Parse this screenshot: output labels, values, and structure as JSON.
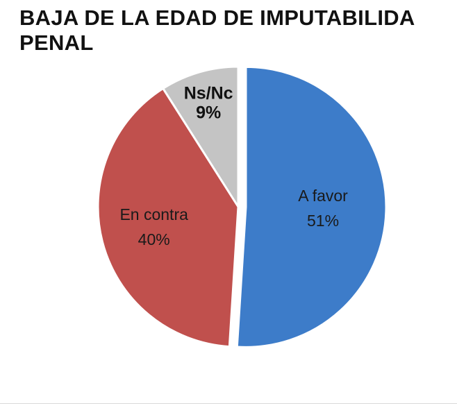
{
  "chart_data": {
    "type": "pie",
    "title_lines": [
      "BAJA DE LA EDAD DE IMPUTABILIDA",
      "PENAL"
    ],
    "slices": [
      {
        "label": "A favor",
        "value": 51,
        "value_label": "51%",
        "color": "#3d7cc9",
        "exploded": true
      },
      {
        "label": "En contra",
        "value": 40,
        "value_label": "40%",
        "color": "#c0504d",
        "exploded": false
      },
      {
        "label": "Ns/Nc",
        "value": 9,
        "value_label": "9%",
        "color": "#c4c4c4",
        "exploded": false
      }
    ],
    "data_labels": "inside"
  }
}
